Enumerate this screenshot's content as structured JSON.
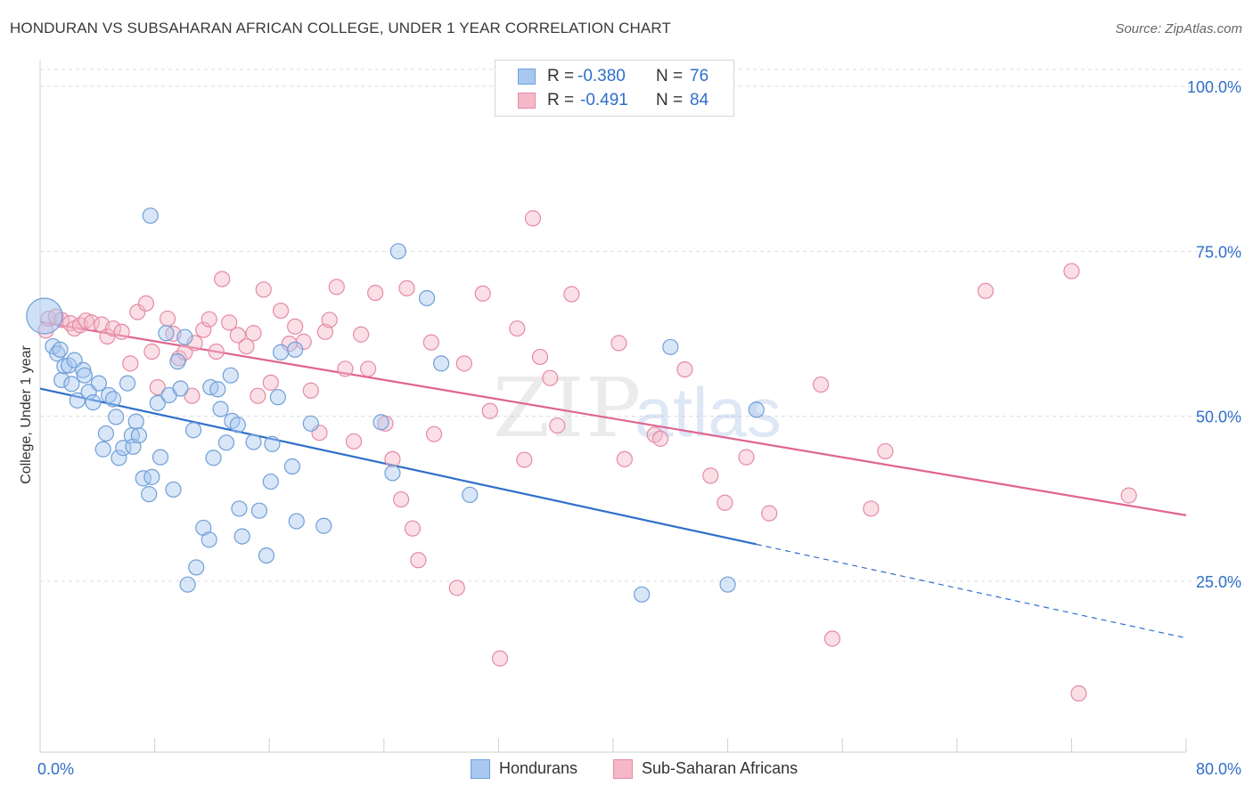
{
  "header": {
    "title": "HONDURAN VS SUBSAHARAN AFRICAN COLLEGE, UNDER 1 YEAR CORRELATION CHART",
    "source": "Source: ZipAtlas.com"
  },
  "watermark": {
    "zip": "ZIP",
    "atlas": "atlas"
  },
  "stats": [
    {
      "r_label": "R =",
      "r_value": "-0.380",
      "n_label": "N =",
      "n_value": "76",
      "color": "#a8c8f0"
    },
    {
      "r_label": "R =",
      "r_value": "-0.491",
      "n_label": "N =",
      "n_value": "84",
      "color": "#f5b8c8"
    }
  ],
  "legend": [
    {
      "label": "Hondurans",
      "color": "#a8c8f0"
    },
    {
      "label": "Sub-Saharan Africans",
      "color": "#f5b8c8"
    }
  ],
  "colors": {
    "blue_point": "#a8c8f0",
    "blue_stroke": "#6f9fd8",
    "blue_line": "#2f6fca",
    "pink_point": "#f5b8c8",
    "pink_stroke": "#e58aa6",
    "pink_line": "#e0648f",
    "grid": "#dcdcdc",
    "tick_label": "#2f6fca"
  },
  "chart_data": {
    "type": "scatter",
    "title": "HONDURAN VS SUBSAHARAN AFRICAN COLLEGE, UNDER 1 YEAR CORRELATION CHART",
    "xlabel": "",
    "ylabel": "College, Under 1 year",
    "xlim": [
      0,
      80
    ],
    "ylim": [
      0,
      105
    ],
    "x_tick_labels": [
      "0.0%",
      "80.0%"
    ],
    "y_ticks": [
      25,
      50,
      75,
      100
    ],
    "y_tick_labels": [
      "25.0%",
      "50.0%",
      "75.0%",
      "100.0%"
    ],
    "grid": true,
    "legend_position": "bottom-center",
    "series": [
      {
        "name": "Hondurans",
        "r": -0.38,
        "n": 76,
        "trend": {
          "x0": 0,
          "y0": 54.2,
          "x1": 50,
          "y1": 30.6,
          "dashed_to_x": 80,
          "dashed_to_y": 16.4
        },
        "points": [
          [
            0.3,
            65.2
          ],
          [
            0.9,
            60.6
          ],
          [
            1.2,
            59.5
          ],
          [
            1.4,
            60.1
          ],
          [
            1.5,
            55.5
          ],
          [
            1.7,
            57.6
          ],
          [
            2.0,
            57.7
          ],
          [
            2.4,
            58.5
          ],
          [
            2.2,
            54.9
          ],
          [
            2.6,
            52.4
          ],
          [
            3.0,
            57.0
          ],
          [
            3.1,
            56.2
          ],
          [
            3.4,
            53.7
          ],
          [
            3.7,
            52.1
          ],
          [
            4.1,
            55.0
          ],
          [
            4.4,
            45.0
          ],
          [
            4.6,
            47.4
          ],
          [
            4.8,
            53.2
          ],
          [
            5.1,
            52.6
          ],
          [
            5.3,
            49.9
          ],
          [
            5.5,
            43.7
          ],
          [
            5.8,
            45.2
          ],
          [
            6.1,
            55.0
          ],
          [
            6.4,
            47.1
          ],
          [
            6.5,
            45.4
          ],
          [
            6.7,
            49.2
          ],
          [
            6.9,
            47.1
          ],
          [
            7.2,
            40.6
          ],
          [
            7.6,
            38.2
          ],
          [
            7.8,
            40.8
          ],
          [
            7.7,
            80.4
          ],
          [
            8.2,
            52.0
          ],
          [
            8.4,
            43.8
          ],
          [
            8.8,
            62.6
          ],
          [
            9.0,
            53.2
          ],
          [
            9.3,
            38.9
          ],
          [
            9.6,
            58.3
          ],
          [
            9.8,
            54.2
          ],
          [
            10.1,
            62.0
          ],
          [
            10.3,
            24.5
          ],
          [
            10.7,
            47.9
          ],
          [
            10.9,
            27.1
          ],
          [
            11.4,
            33.1
          ],
          [
            11.8,
            31.3
          ],
          [
            11.9,
            54.4
          ],
          [
            12.1,
            43.7
          ],
          [
            12.4,
            54.1
          ],
          [
            12.6,
            51.1
          ],
          [
            13.0,
            46.0
          ],
          [
            13.3,
            56.2
          ],
          [
            13.4,
            49.3
          ],
          [
            13.8,
            48.7
          ],
          [
            13.9,
            36.0
          ],
          [
            14.1,
            31.8
          ],
          [
            14.9,
            46.1
          ],
          [
            15.3,
            35.7
          ],
          [
            15.8,
            28.9
          ],
          [
            16.1,
            40.1
          ],
          [
            16.2,
            45.8
          ],
          [
            16.6,
            52.9
          ],
          [
            16.8,
            59.7
          ],
          [
            17.6,
            42.4
          ],
          [
            17.8,
            60.1
          ],
          [
            17.9,
            34.1
          ],
          [
            18.9,
            48.9
          ],
          [
            19.8,
            33.4
          ],
          [
            23.8,
            49.1
          ],
          [
            24.6,
            41.4
          ],
          [
            25.0,
            75.0
          ],
          [
            27.0,
            67.9
          ],
          [
            28.0,
            58.0
          ],
          [
            30.0,
            38.1
          ],
          [
            42.0,
            23.0
          ],
          [
            44.0,
            60.5
          ],
          [
            48.0,
            24.5
          ],
          [
            50.0,
            51.0
          ]
        ]
      },
      {
        "name": "Sub-Saharan Africans",
        "r": -0.491,
        "n": 84,
        "trend": {
          "x0": 0,
          "y0": 64.3,
          "x1": 80,
          "y1": 35.0
        },
        "points": [
          [
            0.4,
            63.0
          ],
          [
            0.6,
            64.8
          ],
          [
            1.1,
            65.1
          ],
          [
            1.5,
            64.6
          ],
          [
            2.1,
            64.1
          ],
          [
            2.4,
            63.3
          ],
          [
            2.8,
            63.8
          ],
          [
            3.2,
            64.5
          ],
          [
            3.6,
            64.2
          ],
          [
            4.3,
            63.9
          ],
          [
            4.7,
            62.1
          ],
          [
            5.1,
            63.3
          ],
          [
            5.7,
            62.8
          ],
          [
            6.3,
            58.0
          ],
          [
            6.8,
            65.8
          ],
          [
            7.4,
            67.1
          ],
          [
            7.8,
            59.8
          ],
          [
            8.2,
            54.4
          ],
          [
            8.9,
            64.8
          ],
          [
            9.3,
            62.5
          ],
          [
            9.7,
            58.8
          ],
          [
            10.1,
            59.7
          ],
          [
            10.6,
            53.1
          ],
          [
            10.8,
            61.1
          ],
          [
            11.4,
            63.1
          ],
          [
            11.8,
            64.7
          ],
          [
            12.3,
            59.8
          ],
          [
            12.7,
            70.8
          ],
          [
            13.2,
            64.2
          ],
          [
            13.8,
            62.3
          ],
          [
            14.4,
            60.6
          ],
          [
            14.9,
            62.6
          ],
          [
            15.2,
            53.1
          ],
          [
            15.6,
            69.2
          ],
          [
            16.1,
            55.1
          ],
          [
            16.8,
            66.0
          ],
          [
            17.4,
            61.0
          ],
          [
            17.8,
            63.6
          ],
          [
            18.4,
            61.3
          ],
          [
            18.9,
            53.9
          ],
          [
            19.5,
            47.5
          ],
          [
            19.9,
            62.8
          ],
          [
            20.2,
            64.6
          ],
          [
            20.7,
            69.6
          ],
          [
            21.3,
            57.2
          ],
          [
            21.9,
            46.2
          ],
          [
            22.4,
            62.4
          ],
          [
            22.9,
            57.2
          ],
          [
            23.4,
            68.7
          ],
          [
            24.1,
            48.9
          ],
          [
            24.6,
            43.5
          ],
          [
            25.2,
            37.4
          ],
          [
            25.6,
            69.4
          ],
          [
            26.0,
            33.0
          ],
          [
            26.4,
            28.2
          ],
          [
            27.3,
            61.2
          ],
          [
            27.5,
            47.3
          ],
          [
            29.1,
            24.0
          ],
          [
            29.6,
            58.0
          ],
          [
            30.9,
            68.6
          ],
          [
            31.4,
            50.8
          ],
          [
            32.1,
            13.3
          ],
          [
            33.3,
            63.3
          ],
          [
            33.8,
            43.4
          ],
          [
            34.4,
            80.0
          ],
          [
            34.9,
            59.0
          ],
          [
            35.6,
            55.8
          ],
          [
            36.1,
            48.6
          ],
          [
            37.1,
            68.5
          ],
          [
            40.4,
            61.1
          ],
          [
            40.8,
            43.5
          ],
          [
            42.9,
            47.2
          ],
          [
            43.3,
            46.6
          ],
          [
            45.0,
            57.1
          ],
          [
            46.8,
            41.0
          ],
          [
            47.8,
            36.9
          ],
          [
            49.3,
            43.8
          ],
          [
            50.9,
            35.3
          ],
          [
            54.5,
            54.8
          ],
          [
            55.3,
            16.3
          ],
          [
            58.0,
            36.0
          ],
          [
            59.0,
            44.7
          ],
          [
            66.0,
            69.0
          ],
          [
            72.0,
            72.0
          ],
          [
            72.5,
            8.0
          ],
          [
            76.0,
            38.0
          ]
        ]
      }
    ]
  }
}
